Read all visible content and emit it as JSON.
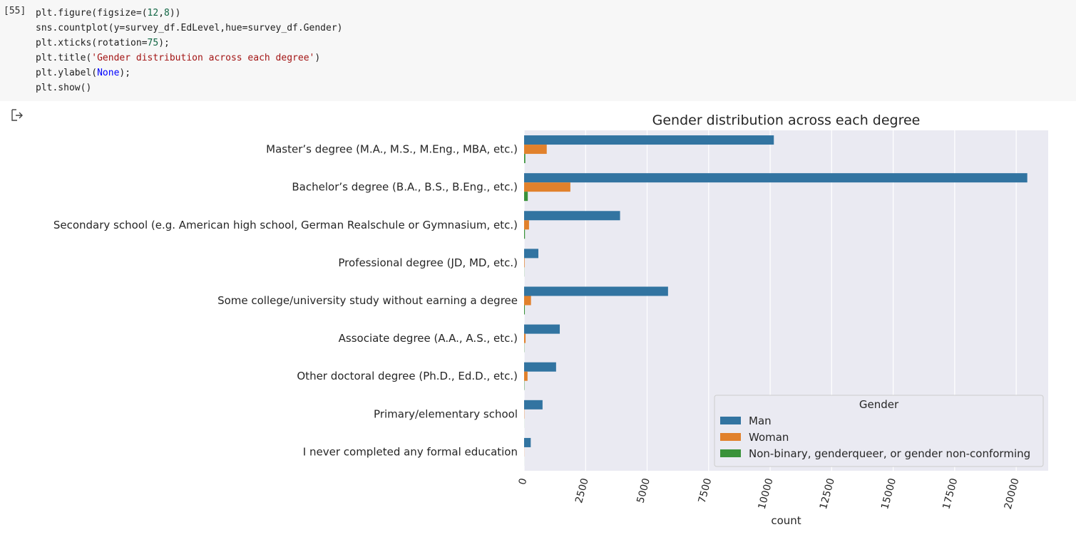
{
  "cell": {
    "prompt": "[55]",
    "code_lines": [
      [
        {
          "t": "plt.figure(figsize=("
        },
        {
          "t": "12",
          "c": "num"
        },
        {
          "t": ","
        },
        {
          "t": "8",
          "c": "num"
        },
        {
          "t": "))"
        }
      ],
      [
        {
          "t": "sns.countplot(y=survey_df.EdLevel,hue=survey_df.Gender)"
        }
      ],
      [
        {
          "t": "plt.xticks(rotation="
        },
        {
          "t": "75",
          "c": "num"
        },
        {
          "t": ");"
        }
      ],
      [
        {
          "t": "plt.title("
        },
        {
          "t": "'Gender distribution across each degree'",
          "c": "str"
        },
        {
          "t": ")"
        }
      ],
      [
        {
          "t": "plt.ylabel("
        },
        {
          "t": "None",
          "c": "kw"
        },
        {
          "t": ");"
        }
      ],
      [
        {
          "t": "plt.show()"
        }
      ]
    ]
  },
  "output": {
    "icon": "output-arrow-icon"
  },
  "chart_data": {
    "type": "bar",
    "orientation": "horizontal",
    "title": "Gender distribution across each degree",
    "xlabel": "count",
    "ylabel": "",
    "xlim": [
      0,
      21300
    ],
    "xticks": [
      0,
      2500,
      5000,
      7500,
      10000,
      12500,
      15000,
      17500,
      20000
    ],
    "xtick_rotation": 75,
    "categories": [
      "Master’s degree (M.A., M.S., M.Eng., MBA, etc.)",
      "Bachelor’s degree (B.A., B.S., B.Eng., etc.)",
      "Secondary school (e.g. American high school, German Realschule or Gymnasium, etc.)",
      "Professional degree (JD, MD, etc.)",
      "Some college/university study without earning a degree",
      "Associate degree (A.A., A.S., etc.)",
      "Other doctoral degree (Ph.D., Ed.D., etc.)",
      "Primary/elementary school",
      "I never completed any formal education"
    ],
    "series": [
      {
        "name": "Man",
        "color": "#3274a1",
        "values": [
          10150,
          20450,
          3900,
          580,
          5850,
          1450,
          1300,
          750,
          270
        ]
      },
      {
        "name": "Woman",
        "color": "#e1812c",
        "values": [
          920,
          1880,
          200,
          20,
          280,
          60,
          140,
          10,
          5
        ]
      },
      {
        "name": "Non-binary, genderqueer, or gender non-conforming",
        "color": "#3a923a",
        "values": [
          50,
          150,
          35,
          5,
          30,
          8,
          12,
          2,
          1
        ]
      }
    ],
    "legend": {
      "title": "Gender",
      "placement": "lower-right"
    },
    "grid": true,
    "colors": {
      "plot_background": "#eaeaf2",
      "grid": "#ffffff"
    }
  }
}
